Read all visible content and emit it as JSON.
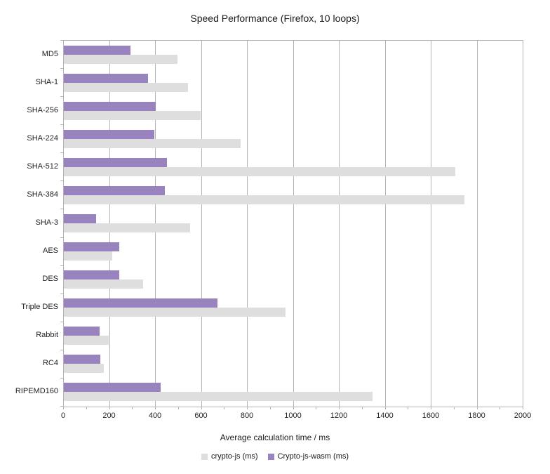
{
  "chart_data": {
    "type": "bar",
    "orientation": "horizontal",
    "title": "Speed Performance (Firefox, 10 loops)",
    "xlabel": "Average calculation time / ms",
    "xlim": [
      0,
      2000
    ],
    "x_major_tick_interval": 200,
    "x_minor_tick_interval": 100,
    "x_tick_labels": [
      "0",
      "200",
      "400",
      "600",
      "800",
      "1000",
      "1200",
      "1400",
      "1600",
      "1800",
      "2000"
    ],
    "grid": true,
    "legend_position": "bottom",
    "categories": [
      "MD5",
      "SHA-1",
      "SHA-256",
      "SHA-224",
      "SHA-512",
      "SHA-384",
      "SHA-3",
      "AES",
      "DES",
      "Triple DES",
      "Rabbit",
      "RC4",
      "RIPEMD160"
    ],
    "series": [
      {
        "name": "crypto-js (ms)",
        "color": "#dedede",
        "values": [
          495,
          540,
          595,
          770,
          1705,
          1745,
          550,
          210,
          345,
          965,
          195,
          175,
          1345
        ]
      },
      {
        "name": "Crypto-js-wasm (ms)",
        "color": "#9883bf",
        "values": [
          290,
          365,
          400,
          395,
          450,
          440,
          140,
          240,
          240,
          670,
          155,
          160,
          420
        ]
      }
    ],
    "colors": {
      "grid": "#b3b3b3",
      "axis": "#b3b3b3",
      "text": "#222222",
      "background": "#ffffff"
    }
  }
}
